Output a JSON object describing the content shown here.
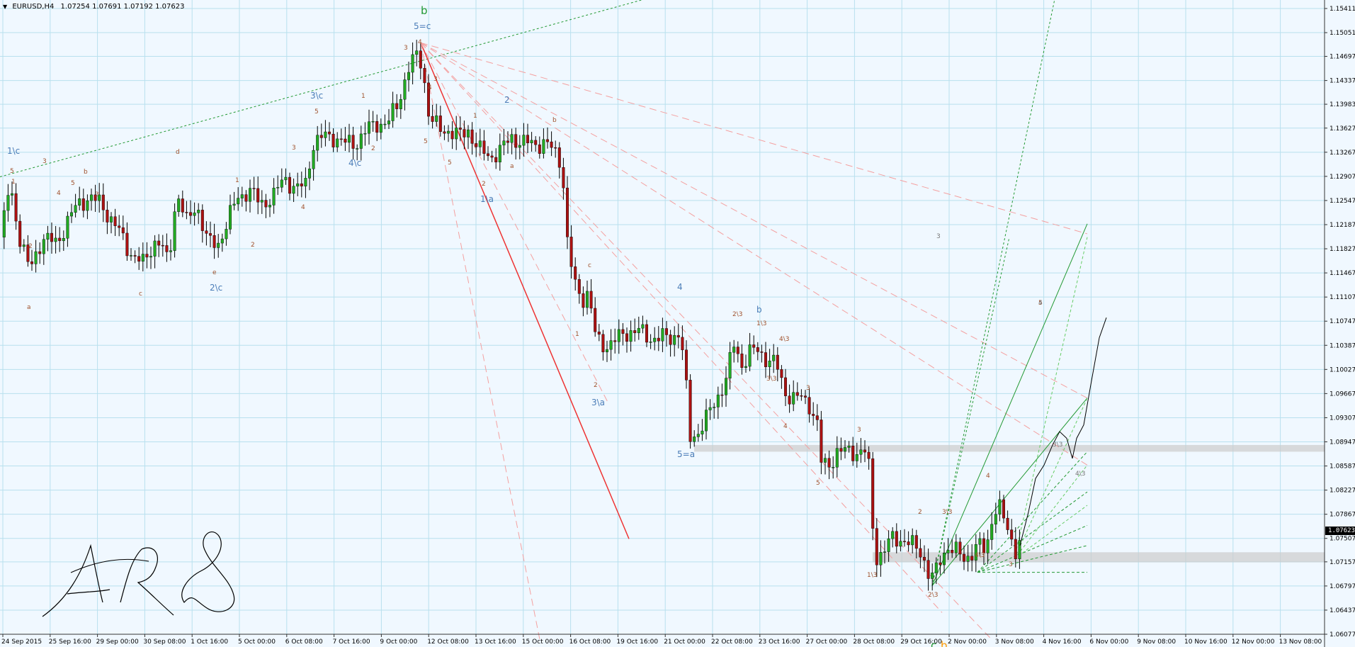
{
  "header": {
    "symbol": "EURUSD,H4",
    "ohlc": "1.07254 1.07691 1.07192 1.07623"
  },
  "current_price": "1.07623",
  "price_axis": [
    "1.15411",
    "1.15051",
    "1.14697",
    "1.14337",
    "1.13983",
    "1.13627",
    "1.13267",
    "1.12907",
    "1.12547",
    "1.12187",
    "1.11827",
    "1.11467",
    "1.11107",
    "1.10747",
    "1.10387",
    "1.10027",
    "1.09667",
    "1.09307",
    "1.08947",
    "1.08587",
    "1.08227",
    "1.07867",
    "1.07507",
    "1.07157",
    "1.06797",
    "1.06437",
    "1.06077"
  ],
  "time_axis": [
    "24 Sep 2015",
    "25 Sep 16:00",
    "29 Sep 00:00",
    "30 Sep 08:00",
    "1 Oct 16:00",
    "5 Oct 00:00",
    "6 Oct 08:00",
    "7 Oct 16:00",
    "9 Oct 00:00",
    "12 Oct 08:00",
    "13 Oct 16:00",
    "15 Oct 00:00",
    "16 Oct 08:00",
    "19 Oct 16:00",
    "21 Oct 00:00",
    "22 Oct 08:00",
    "23 Oct 16:00",
    "27 Oct 00:00",
    "28 Oct 08:00",
    "29 Oct 16:00",
    "2 Nov 00:00",
    "3 Nov 08:00",
    "4 Nov 16:00",
    "6 Nov 00:00",
    "9 Nov 08:00",
    "10 Nov 16:00",
    "12 Nov 00:00",
    "13 Nov 08:00"
  ],
  "chart_data": {
    "type": "candlestick",
    "symbol": "EURUSD",
    "timeframe": "H4",
    "ylim": [
      1.06077,
      1.15411
    ],
    "grid": true,
    "colors": {
      "bull": "#22aa22",
      "bear": "#aa1111",
      "background": "#f0f8ff",
      "grid": "#b8e0ee"
    },
    "close_path": [
      [
        0,
        1.12
      ],
      [
        12,
        1.128
      ],
      [
        26,
        1.12
      ],
      [
        40,
        1.115
      ],
      [
        58,
        1.12
      ],
      [
        78,
        1.119
      ],
      [
        96,
        1.123
      ],
      [
        110,
        1.125
      ],
      [
        124,
        1.126
      ],
      [
        140,
        1.125
      ],
      [
        160,
        1.122
      ],
      [
        180,
        1.118
      ],
      [
        200,
        1.116
      ],
      [
        220,
        1.12
      ],
      [
        236,
        1.116
      ],
      [
        248,
        1.127
      ],
      [
        262,
        1.122
      ],
      [
        276,
        1.125
      ],
      [
        292,
        1.119
      ],
      [
        306,
        1.119
      ],
      [
        318,
        1.122
      ],
      [
        334,
        1.126
      ],
      [
        350,
        1.127
      ],
      [
        366,
        1.125
      ],
      [
        384,
        1.126
      ],
      [
        400,
        1.129
      ],
      [
        416,
        1.127
      ],
      [
        430,
        1.128
      ],
      [
        440,
        1.134
      ],
      [
        456,
        1.135
      ],
      [
        470,
        1.135
      ],
      [
        484,
        1.134
      ],
      [
        500,
        1.134
      ],
      [
        516,
        1.136
      ],
      [
        530,
        1.137
      ],
      [
        546,
        1.137
      ],
      [
        560,
        1.14
      ],
      [
        574,
        1.145
      ],
      [
        586,
        1.147
      ],
      [
        594,
        1.146
      ],
      [
        604,
        1.138
      ],
      [
        618,
        1.136
      ],
      [
        632,
        1.136
      ],
      [
        646,
        1.135
      ],
      [
        660,
        1.136
      ],
      [
        674,
        1.133
      ],
      [
        690,
        1.132
      ],
      [
        706,
        1.133
      ],
      [
        720,
        1.135
      ],
      [
        736,
        1.134
      ],
      [
        752,
        1.134
      ],
      [
        766,
        1.134
      ],
      [
        780,
        1.133
      ],
      [
        792,
        1.131
      ],
      [
        798,
        1.12
      ],
      [
        804,
        1.116
      ],
      [
        812,
        1.112
      ],
      [
        822,
        1.111
      ],
      [
        830,
        1.112
      ],
      [
        836,
        1.106
      ],
      [
        846,
        1.104
      ],
      [
        858,
        1.104
      ],
      [
        872,
        1.105
      ],
      [
        886,
        1.106
      ],
      [
        900,
        1.106
      ],
      [
        914,
        1.105
      ],
      [
        930,
        1.105
      ],
      [
        946,
        1.105
      ],
      [
        958,
        1.106
      ],
      [
        966,
        1.099
      ],
      [
        972,
        1.09
      ],
      [
        984,
        1.091
      ],
      [
        996,
        1.093
      ],
      [
        1010,
        1.096
      ],
      [
        1024,
        1.099
      ],
      [
        1034,
        1.104
      ],
      [
        1046,
        1.101
      ],
      [
        1058,
        1.103
      ],
      [
        1068,
        1.103
      ],
      [
        1080,
        1.102
      ],
      [
        1094,
        1.101
      ],
      [
        1106,
        1.097
      ],
      [
        1118,
        1.096
      ],
      [
        1130,
        1.096
      ],
      [
        1142,
        1.095
      ],
      [
        1152,
        1.092
      ],
      [
        1158,
        1.086
      ],
      [
        1168,
        1.086
      ],
      [
        1180,
        1.088
      ],
      [
        1194,
        1.088
      ],
      [
        1208,
        1.088
      ],
      [
        1220,
        1.088
      ],
      [
        1228,
        1.084
      ],
      [
        1232,
        1.072
      ],
      [
        1244,
        1.073
      ],
      [
        1258,
        1.075
      ],
      [
        1272,
        1.075
      ],
      [
        1286,
        1.074
      ],
      [
        1300,
        1.073
      ],
      [
        1308,
        1.07
      ],
      [
        1316,
        1.069
      ],
      [
        1326,
        1.072
      ],
      [
        1336,
        1.074
      ],
      [
        1348,
        1.073
      ],
      [
        1360,
        1.072
      ],
      [
        1370,
        1.073
      ],
      [
        1380,
        1.074
      ],
      [
        1390,
        1.073
      ],
      [
        1400,
        1.079
      ],
      [
        1408,
        1.08
      ],
      [
        1418,
        1.077
      ],
      [
        1426,
        1.075
      ],
      [
        1434,
        1.073
      ],
      [
        1442,
        1.0762
      ]
    ],
    "projection_path": [
      [
        1440,
        1.074
      ],
      [
        1452,
        1.079
      ],
      [
        1462,
        1.084
      ],
      [
        1474,
        1.086
      ],
      [
        1486,
        1.089
      ],
      [
        1496,
        1.091
      ],
      [
        1506,
        1.09
      ],
      [
        1514,
        1.087
      ],
      [
        1520,
        1.09
      ],
      [
        1530,
        1.092
      ],
      [
        1540,
        1.098
      ],
      [
        1552,
        1.105
      ],
      [
        1562,
        1.108
      ]
    ],
    "wave_labels": {
      "steelblue": [
        "1\\c",
        "3\\c",
        "4\\c",
        "2\\c",
        "5=c",
        "2",
        "1\\a",
        "3\\a",
        "4",
        "5=a",
        "b"
      ],
      "brown": [
        "5",
        "b",
        "a",
        "d",
        "c",
        "e",
        "1",
        "2",
        "3",
        "4",
        "5",
        "3",
        "1",
        "2",
        "3",
        "4",
        "5",
        "1",
        "2",
        "3",
        "4",
        "5",
        "4",
        "3",
        "5",
        "1",
        "2",
        "a",
        "b",
        "c",
        "1",
        "2",
        "2\\3",
        "1\\3",
        "3\\3",
        "4\\3",
        "3",
        "4",
        "5",
        "3",
        "1\\3",
        "2",
        "2\\3",
        "3\\3",
        "4\\3",
        "3",
        "4",
        "5"
      ],
      "green": [
        "b",
        "c"
      ],
      "orange": [
        "b"
      ],
      "grey": [
        "3",
        "4",
        "3\\3",
        "4\\3"
      ]
    },
    "signature": "ARS"
  }
}
